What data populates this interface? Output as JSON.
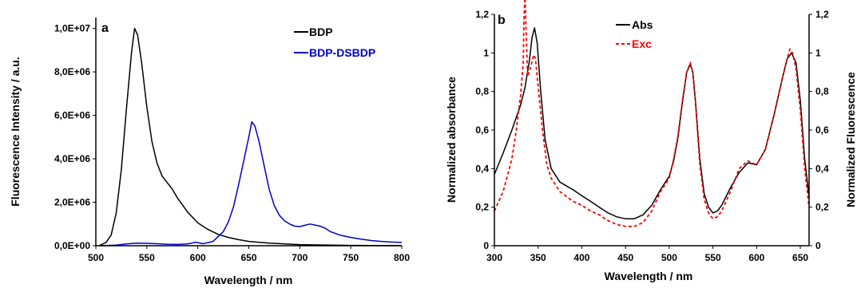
{
  "chart_data": [
    {
      "type": "line",
      "panel_label": "a",
      "xlabel": "Wavelength / nm",
      "ylabel": "Fluorescence Intensity / a.u.",
      "xlim": [
        500,
        800
      ],
      "ylim": [
        0,
        10500000
      ],
      "xticks": [
        500,
        550,
        600,
        650,
        700,
        750,
        800
      ],
      "xtick_labels": [
        "500",
        "550",
        "600",
        "650",
        "700",
        "750",
        "800"
      ],
      "yticks": [
        0,
        2000000,
        4000000,
        6000000,
        8000000,
        10000000
      ],
      "ytick_labels": [
        "0,0E+00",
        "2,0E+06",
        "4,0E+06",
        "6,0E+06",
        "8,0E+06",
        "1,0E+07"
      ],
      "grid": false,
      "legend_position": "top-right",
      "series": [
        {
          "name": "BDP",
          "color": "#000000",
          "dash": "solid",
          "x": [
            503,
            510,
            515,
            520,
            525,
            530,
            535,
            538,
            541,
            545,
            550,
            555,
            560,
            565,
            570,
            575,
            580,
            590,
            600,
            610,
            620,
            630,
            640,
            650,
            670,
            700,
            750,
            800
          ],
          "y": [
            0,
            150000,
            500000,
            1500000,
            3500000,
            6300000,
            8900000,
            10000000,
            9700000,
            8400000,
            6400000,
            4800000,
            3800000,
            3200000,
            2900000,
            2600000,
            2200000,
            1550000,
            1050000,
            750000,
            520000,
            380000,
            280000,
            200000,
            120000,
            50000,
            15000,
            5000
          ]
        },
        {
          "name": "BDP-DSBDP",
          "color": "#0000cc",
          "dash": "solid",
          "x": [
            505,
            520,
            530,
            540,
            550,
            560,
            570,
            580,
            590,
            598,
            605,
            615,
            625,
            630,
            635,
            640,
            645,
            650,
            653,
            656,
            660,
            665,
            670,
            675,
            680,
            685,
            690,
            695,
            700,
            705,
            710,
            715,
            720,
            725,
            730,
            740,
            750,
            760,
            770,
            780,
            790,
            800
          ],
          "y": [
            0,
            30000,
            80000,
            120000,
            110000,
            90000,
            70000,
            60000,
            80000,
            160000,
            90000,
            200000,
            650000,
            1100000,
            1800000,
            2800000,
            3900000,
            5000000,
            5700000,
            5500000,
            4800000,
            3700000,
            2600000,
            1850000,
            1400000,
            1150000,
            1000000,
            900000,
            880000,
            940000,
            1000000,
            950000,
            900000,
            800000,
            650000,
            480000,
            380000,
            300000,
            240000,
            200000,
            170000,
            150000
          ]
        }
      ]
    },
    {
      "type": "line",
      "panel_label": "b",
      "xlabel": "Wavelength / nm",
      "ylabel": "Normalized absorbance",
      "y2label": "Normalized Fluorescence",
      "xlim": [
        300,
        660
      ],
      "ylim": [
        0,
        1.2
      ],
      "y2lim": [
        0,
        1.2
      ],
      "xticks": [
        300,
        350,
        400,
        450,
        500,
        550,
        600,
        650
      ],
      "xtick_labels": [
        "300",
        "350",
        "400",
        "450",
        "500",
        "550",
        "600",
        "650"
      ],
      "yticks": [
        0,
        0.2,
        0.4,
        0.6,
        0.8,
        1,
        1.2
      ],
      "ytick_labels": [
        "0",
        "0,2",
        "0,4",
        "0,6",
        "0,8",
        "1",
        "1,2"
      ],
      "y2ticks": [
        0,
        0.2,
        0.4,
        0.6,
        0.8,
        1,
        1.2
      ],
      "y2tick_labels": [
        "0",
        "0,2",
        "0,4",
        "0,6",
        "0,8",
        "1",
        "1,2"
      ],
      "grid": false,
      "legend_position": "top-center",
      "series": [
        {
          "name": "Abs",
          "color": "#000000",
          "dash": "solid",
          "x": [
            300,
            310,
            320,
            330,
            335,
            340,
            343,
            346,
            349,
            353,
            358,
            365,
            375,
            390,
            400,
            410,
            420,
            430,
            440,
            450,
            460,
            470,
            480,
            490,
            500,
            505,
            510,
            515,
            520,
            524,
            527,
            530,
            535,
            540,
            545,
            550,
            555,
            560,
            570,
            580,
            590,
            600,
            610,
            620,
            630,
            635,
            640,
            645,
            650,
            655,
            660
          ],
          "y": [
            0.37,
            0.48,
            0.6,
            0.73,
            0.82,
            0.96,
            1.08,
            1.13,
            1.05,
            0.8,
            0.55,
            0.4,
            0.33,
            0.29,
            0.26,
            0.23,
            0.2,
            0.17,
            0.15,
            0.14,
            0.14,
            0.16,
            0.21,
            0.29,
            0.36,
            0.44,
            0.56,
            0.74,
            0.9,
            0.94,
            0.9,
            0.75,
            0.45,
            0.27,
            0.2,
            0.17,
            0.18,
            0.21,
            0.3,
            0.38,
            0.43,
            0.42,
            0.5,
            0.68,
            0.88,
            0.97,
            1.0,
            0.95,
            0.75,
            0.45,
            0.25
          ]
        },
        {
          "name": "Exc",
          "color": "#ff0000",
          "dash": "dashed",
          "x": [
            300,
            310,
            320,
            325,
            330,
            333,
            334,
            335,
            336,
            338,
            341,
            345,
            347,
            350,
            355,
            360,
            365,
            375,
            390,
            400,
            410,
            420,
            430,
            440,
            450,
            460,
            470,
            480,
            490,
            500,
            505,
            510,
            515,
            520,
            524,
            527,
            530,
            535,
            540,
            545,
            550,
            555,
            560,
            570,
            580,
            590,
            600,
            610,
            620,
            630,
            635,
            638,
            641,
            645,
            650,
            655,
            660
          ],
          "y": [
            0.18,
            0.28,
            0.45,
            0.6,
            0.78,
            0.95,
            1.2,
            1.3,
            1.15,
            0.88,
            0.92,
            0.99,
            0.97,
            0.83,
            0.6,
            0.42,
            0.35,
            0.28,
            0.23,
            0.21,
            0.18,
            0.16,
            0.13,
            0.11,
            0.1,
            0.1,
            0.12,
            0.18,
            0.28,
            0.35,
            0.45,
            0.57,
            0.75,
            0.9,
            0.95,
            0.9,
            0.75,
            0.42,
            0.24,
            0.17,
            0.14,
            0.15,
            0.18,
            0.28,
            0.4,
            0.44,
            0.42,
            0.5,
            0.68,
            0.88,
            0.97,
            1.02,
            1.0,
            0.92,
            0.7,
            0.4,
            0.2
          ]
        }
      ]
    }
  ]
}
